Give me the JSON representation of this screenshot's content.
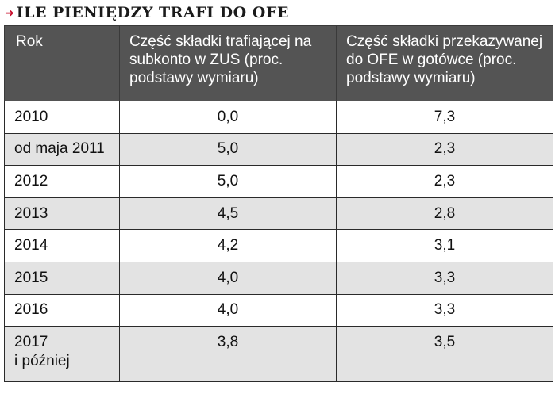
{
  "title": "ILE PIENIĘDZY TRAFI DO OFE",
  "table": {
    "headers": [
      "Rok",
      "Część składki trafiającej na subkonto w ZUS (proc. podstawy wymiaru)",
      "Część składki przekazywanej do OFE w gotówce (proc. podstawy wymiaru)"
    ],
    "rows": [
      {
        "rok": "2010",
        "zus": "0,0",
        "ofe": "7,3"
      },
      {
        "rok": "od maja 2011",
        "zus": "5,0",
        "ofe": "2,3"
      },
      {
        "rok": "2012",
        "zus": "5,0",
        "ofe": "2,3"
      },
      {
        "rok": "2013",
        "zus": "4,5",
        "ofe": "2,8"
      },
      {
        "rok": "2014",
        "zus": "4,2",
        "ofe": "3,1"
      },
      {
        "rok": "2015",
        "zus": "4,0",
        "ofe": "3,3"
      },
      {
        "rok": "2016",
        "zus": "4,0",
        "ofe": "3,3"
      },
      {
        "rok": "2017\ni później",
        "zus": "3,8",
        "ofe": "3,5"
      }
    ]
  },
  "colors": {
    "header_bg": "#545454",
    "alt_row_bg": "#e3e3e3",
    "accent_arrow": "#c8102e"
  },
  "icons": {
    "title_marker": "arrow-right-icon"
  }
}
